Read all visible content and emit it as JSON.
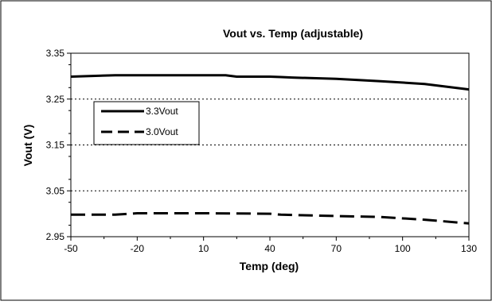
{
  "chart_data": {
    "type": "line",
    "title": "Vout vs. Temp (adjustable)",
    "xlabel": "Temp (deg)",
    "ylabel": "Vout (V)",
    "xlim": [
      -50,
      130
    ],
    "ylim": [
      2.95,
      3.35
    ],
    "x_ticks": [
      "-50",
      "-20",
      "10",
      "40",
      "70",
      "100",
      "130"
    ],
    "y_ticks": [
      "3.35",
      "3.25",
      "3.15",
      "3.05",
      "2.95"
    ],
    "grid": "horizontal dotted",
    "legend_position": "upper-left inside plot",
    "series": [
      {
        "name": "3.3Vout",
        "style": "solid",
        "color": "#000000",
        "x": [
          -50,
          -30,
          -10,
          10,
          20,
          25,
          40,
          45,
          50,
          70,
          90,
          110,
          130
        ],
        "y": [
          3.299,
          3.302,
          3.302,
          3.302,
          3.302,
          3.299,
          3.299,
          3.298,
          3.297,
          3.294,
          3.289,
          3.283,
          3.271
        ]
      },
      {
        "name": "3.0Vout",
        "style": "dashed",
        "color": "#000000",
        "x": [
          -50,
          -30,
          -20,
          10,
          40,
          45,
          70,
          90,
          110,
          130
        ],
        "y": [
          2.998,
          2.998,
          3.001,
          3.001,
          3.0,
          2.998,
          2.995,
          2.993,
          2.987,
          2.979
        ]
      }
    ]
  }
}
